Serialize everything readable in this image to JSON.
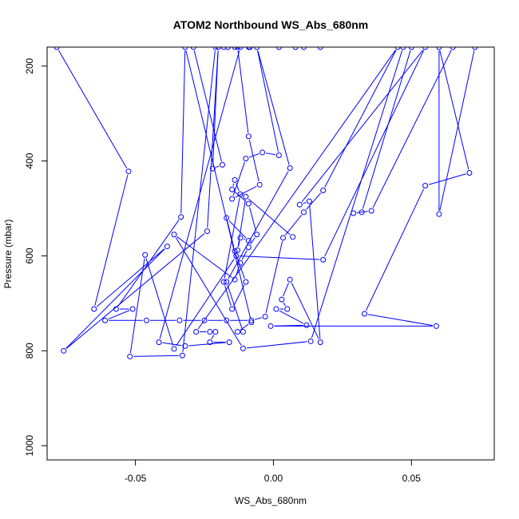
{
  "chart_data": {
    "type": "line",
    "title": "ATOM2 Northbound WS_Abs_680nm",
    "xlabel": "WS_Abs_680nm",
    "ylabel": "Pressure (mbar)",
    "xlim": [
      -0.082,
      0.08
    ],
    "ylim": [
      1030,
      160
    ],
    "x_ticks": [
      -0.05,
      0.0,
      0.05
    ],
    "x_tick_labels": [
      "-0.05",
      "0.00",
      "0.05"
    ],
    "y_ticks": [
      200,
      400,
      600,
      800,
      1000
    ],
    "y_tick_labels": [
      "200",
      "400",
      "600",
      "800",
      "1000"
    ],
    "grid": false,
    "legend": "none",
    "series_color": "#0000ff",
    "series": [
      {
        "points": [
          [
            -0.0785,
            160
          ],
          [
            -0.0525,
            422
          ],
          [
            -0.065,
            712
          ],
          [
            -0.0385,
            580
          ],
          [
            -0.076,
            800
          ],
          [
            -0.024,
            548
          ],
          [
            -0.02,
            160
          ],
          [
            -0.022,
            416
          ],
          [
            -0.0185,
            408
          ],
          [
            -0.029,
            160
          ],
          [
            -0.013,
            160
          ],
          [
            -0.009,
            348
          ],
          [
            -0.005,
            450
          ],
          [
            -0.015,
            480
          ],
          [
            -0.01,
            395
          ],
          [
            -0.004,
            382
          ],
          [
            0.002,
            388
          ],
          [
            -0.006,
            160
          ],
          [
            0.006,
            415
          ],
          [
            -0.017,
            655
          ],
          [
            -0.011,
            760
          ],
          [
            -0.013,
            760
          ],
          [
            -0.008,
            740
          ],
          [
            -0.032,
            160
          ],
          [
            -0.0335,
            518
          ],
          [
            -0.057,
            712
          ],
          [
            -0.051,
            712
          ],
          [
            -0.061,
            736
          ],
          [
            -0.046,
            736
          ],
          [
            -0.034,
            736
          ],
          [
            -0.025,
            736
          ],
          [
            -0.017,
            736
          ],
          [
            -0.008,
            736
          ],
          [
            -0.003,
            728
          ],
          [
            0.0035,
            562
          ],
          [
            0.011,
            508
          ],
          [
            0.018,
            462
          ],
          [
            0.045,
            160
          ],
          [
            -0.028,
            760
          ],
          [
            -0.023,
            760
          ],
          [
            -0.021,
            760
          ],
          [
            -0.023,
            782
          ],
          [
            -0.016,
            782
          ],
          [
            -0.032,
            790
          ],
          [
            -0.0415,
            782
          ],
          [
            -0.012,
            160
          ],
          [
            -0.018,
            160
          ],
          [
            -0.0085,
            160
          ],
          [
            -0.014,
            160
          ],
          [
            -0.0165,
            160
          ],
          [
            -0.009,
            160
          ],
          [
            0.002,
            160
          ],
          [
            0.011,
            160
          ],
          [
            0.017,
            160
          ],
          [
            0.008,
            160
          ],
          [
            -0.021,
            160
          ],
          [
            -0.033,
            810
          ],
          [
            -0.052,
            812
          ],
          [
            -0.0465,
            598
          ],
          [
            -0.036,
            796
          ],
          [
            -0.0135,
            600
          ],
          [
            0.018,
            608
          ],
          [
            0.055,
            160
          ],
          [
            0.0095,
            492
          ],
          [
            0.013,
            485
          ],
          [
            0.017,
            782
          ],
          [
            0.006,
            650
          ],
          [
            0.003,
            692
          ],
          [
            0.005,
            712
          ],
          [
            0.001,
            712
          ],
          [
            0.012,
            746
          ],
          [
            -0.001,
            748
          ],
          [
            0.059,
            748
          ],
          [
            0.033,
            722
          ],
          [
            0.055,
            452
          ],
          [
            0.071,
            425
          ],
          [
            0.06,
            160
          ],
          [
            0.06,
            512
          ],
          [
            0.073,
            160
          ],
          [
            0.065,
            160
          ],
          [
            0.0355,
            505
          ],
          [
            0.029,
            510
          ],
          [
            0.032,
            508
          ],
          [
            0.05,
            160
          ],
          [
            0.047,
            160
          ],
          [
            0.0135,
            780
          ],
          [
            -0.011,
            795
          ],
          [
            -0.036,
            555
          ],
          [
            -0.014,
            650
          ],
          [
            -0.012,
            615
          ],
          [
            -0.009,
            582
          ],
          [
            -0.006,
            555
          ],
          [
            -0.009,
            490
          ],
          [
            -0.015,
            460
          ],
          [
            -0.014,
            440
          ],
          [
            -0.012,
            470
          ],
          [
            -0.018,
            655
          ],
          [
            -0.015,
            712
          ],
          [
            -0.01,
            655
          ],
          [
            -0.014,
            590
          ],
          [
            -0.017,
            520
          ],
          [
            -0.009,
            568
          ],
          [
            -0.012,
            562
          ],
          [
            -0.013,
            588
          ],
          [
            -0.01,
            475
          ],
          [
            0.007,
            560
          ]
        ]
      }
    ]
  }
}
